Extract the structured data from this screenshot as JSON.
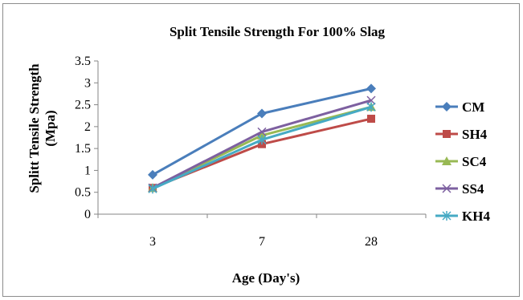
{
  "chart_data": {
    "type": "line",
    "title": "Split Tensile Strength For 100% Slag",
    "xlabel": "Age (Day's)",
    "ylabel": "Splitt Tensile Strength (Mpa)",
    "ylabel_lines": [
      "Splitt Tensile Strength",
      "(Mpa)"
    ],
    "categories": [
      "3",
      "7",
      "28"
    ],
    "ylim": [
      0,
      3.5
    ],
    "yticks": [
      "0",
      "0.5",
      "1",
      "1.5",
      "2",
      "2.5",
      "3",
      "3.5"
    ],
    "grid": false,
    "legend_position": "right",
    "series": [
      {
        "name": "CM",
        "values": [
          0.9,
          2.3,
          2.87
        ],
        "color": "#4a7ebb",
        "marker": "diamond"
      },
      {
        "name": "SH4",
        "values": [
          0.6,
          1.6,
          2.18
        ],
        "color": "#be4b48",
        "marker": "square"
      },
      {
        "name": "SC4",
        "values": [
          0.6,
          1.8,
          2.45
        ],
        "color": "#98b954",
        "marker": "triangle"
      },
      {
        "name": "SS4",
        "values": [
          0.6,
          1.88,
          2.6
        ],
        "color": "#7d60a0",
        "marker": "x"
      },
      {
        "name": "KH4",
        "values": [
          0.58,
          1.7,
          2.45
        ],
        "color": "#46aac4",
        "marker": "star"
      }
    ]
  }
}
